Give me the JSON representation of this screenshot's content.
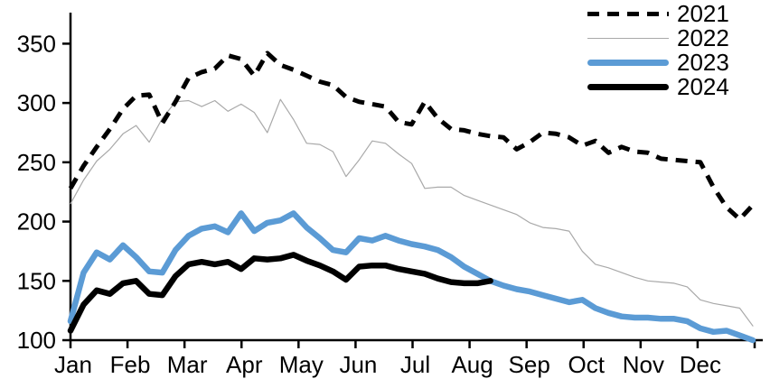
{
  "chart_data": {
    "type": "line",
    "title": "",
    "xlabel": "",
    "ylabel": "",
    "grid": false,
    "legend_position": "top-right",
    "x_unit": "weekly (Jan-Dec)",
    "x_axis": {
      "tick_labels": [
        "Jan",
        "Feb",
        "Mar",
        "Apr",
        "May",
        "Jun",
        "Jul",
        "Aug",
        "Sep",
        "Oct",
        "Nov",
        "Dec"
      ]
    },
    "y_axis": {
      "ticks": [
        100,
        150,
        200,
        250,
        300,
        350
      ],
      "ylim": [
        100,
        375
      ]
    },
    "series": [
      {
        "name": "2021",
        "color": "#000000",
        "style": "dashed",
        "width": 5,
        "values": [
          228,
          247,
          263,
          278,
          295,
          306,
          307,
          283,
          301,
          321,
          326,
          329,
          340,
          337,
          323,
          342,
          332,
          328,
          323,
          318,
          315,
          305,
          301,
          299,
          297,
          284,
          282,
          301,
          287,
          278,
          277,
          274,
          272,
          271,
          261,
          267,
          275,
          274,
          271,
          264,
          268,
          258,
          263,
          259,
          258,
          253,
          252,
          251,
          250,
          229,
          212,
          202,
          214
        ]
      },
      {
        "name": "2022",
        "color": "#a9a9a9",
        "style": "solid",
        "width": 1.2,
        "values": [
          215,
          235,
          251,
          261,
          274,
          281,
          267,
          287,
          301,
          302,
          297,
          302,
          293,
          299,
          292,
          275,
          303,
          286,
          266,
          265,
          259,
          238,
          252,
          268,
          266,
          257,
          249,
          228,
          229,
          229,
          222,
          218,
          214,
          210,
          206,
          199,
          195,
          194,
          192,
          175,
          164,
          161,
          157,
          153,
          150,
          149,
          148,
          145,
          134,
          131,
          129,
          127,
          112
        ]
      },
      {
        "name": "2023",
        "color": "#5b9bd5",
        "style": "solid",
        "width": 6.5,
        "values": [
          116,
          157,
          174,
          168,
          180,
          170,
          158,
          157,
          176,
          188,
          194,
          196,
          191,
          207,
          192,
          199,
          201,
          207,
          195,
          186,
          176,
          174,
          186,
          184,
          188,
          184,
          181,
          179,
          176,
          170,
          162,
          156,
          150,
          146,
          143,
          141,
          138,
          135,
          132,
          134,
          127,
          123,
          120,
          119,
          119,
          118,
          118,
          116,
          110,
          107,
          108,
          104,
          100
        ]
      },
      {
        "name": "2024",
        "color": "#000000",
        "style": "solid",
        "width": 6.5,
        "values": [
          108,
          130,
          142,
          139,
          148,
          150,
          139,
          138,
          154,
          164,
          166,
          164,
          166,
          160,
          169,
          168,
          169,
          172,
          167,
          163,
          158,
          151,
          162,
          163,
          163,
          160,
          158,
          156,
          152,
          149,
          148,
          148,
          150
        ]
      }
    ]
  }
}
